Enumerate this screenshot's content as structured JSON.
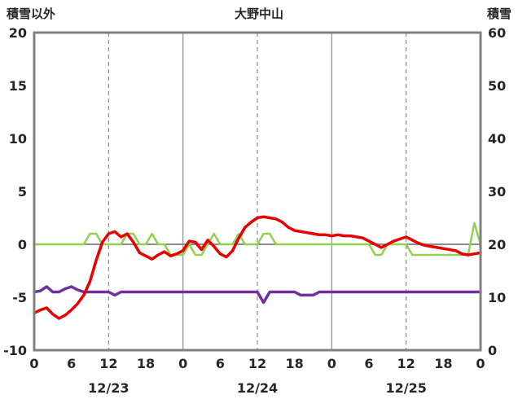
{
  "chart_data": {
    "type": "line",
    "title": "大野中山",
    "left_axis_label": "積雪以外",
    "right_axis_label": "積雪",
    "left_ylim": [
      -10,
      20
    ],
    "right_ylim": [
      0,
      60
    ],
    "left_yticks": [
      20,
      15,
      10,
      5,
      0,
      -5,
      -10
    ],
    "right_yticks": [
      60,
      50,
      40,
      30,
      20,
      10,
      0
    ],
    "x_hours_range": [
      0,
      72
    ],
    "x_tick_step": 6,
    "x_tick_labels": [
      "0",
      "6",
      "12",
      "18",
      "0",
      "6",
      "12",
      "18",
      "0",
      "6",
      "12",
      "18",
      "0"
    ],
    "date_labels": [
      {
        "hour": 12,
        "label": "12/23"
      },
      {
        "hour": 36,
        "label": "12/24"
      },
      {
        "hour": 60,
        "label": "12/25"
      }
    ],
    "gridlines": {
      "solid_hours": [
        24,
        48
      ],
      "dashed_hours": [
        12,
        36,
        60
      ]
    },
    "colors": {
      "frame": "#808080",
      "gridline": "#8c8c8c",
      "zero_line": "#8c8c8c",
      "text": "#262626",
      "red": "#e60000",
      "green": "#92d050",
      "purple": "#7030a0"
    },
    "series": [
      {
        "name": "green-line",
        "color": "#92d050",
        "width": 2.5,
        "axis": "left",
        "values": [
          0,
          0,
          0,
          0,
          0,
          0,
          0,
          0,
          0,
          1,
          1,
          0,
          0,
          0,
          0,
          1,
          1,
          0,
          0,
          1,
          0,
          0,
          -1,
          -1,
          -1,
          0,
          -1,
          -1,
          0,
          1,
          0,
          0,
          0,
          1,
          0,
          0,
          0,
          1,
          1,
          0,
          0,
          0,
          0,
          0,
          0,
          0,
          0,
          0,
          0,
          0,
          0,
          0,
          0,
          0,
          0,
          -1,
          -1,
          0,
          0,
          0,
          0,
          -1,
          -1,
          -1,
          -1,
          -1,
          -1,
          -1,
          -1,
          -1,
          -1,
          2,
          0
        ]
      },
      {
        "name": "purple-line",
        "color": "#7030a0",
        "width": 3.5,
        "axis": "left",
        "values": [
          -4.5,
          -4.4,
          -4.0,
          -4.5,
          -4.5,
          -4.2,
          -4.0,
          -4.3,
          -4.5,
          -4.5,
          -4.5,
          -4.5,
          -4.5,
          -4.8,
          -4.5,
          -4.5,
          -4.5,
          -4.5,
          -4.5,
          -4.5,
          -4.5,
          -4.5,
          -4.5,
          -4.5,
          -4.5,
          -4.5,
          -4.5,
          -4.5,
          -4.5,
          -4.5,
          -4.5,
          -4.5,
          -4.5,
          -4.5,
          -4.5,
          -4.5,
          -4.5,
          -5.5,
          -4.5,
          -4.5,
          -4.5,
          -4.5,
          -4.5,
          -4.8,
          -4.8,
          -4.8,
          -4.5,
          -4.5,
          -4.5,
          -4.5,
          -4.5,
          -4.5,
          -4.5,
          -4.5,
          -4.5,
          -4.5,
          -4.5,
          -4.5,
          -4.5,
          -4.5,
          -4.5,
          -4.5,
          -4.5,
          -4.5,
          -4.5,
          -4.5,
          -4.5,
          -4.5,
          -4.5,
          -4.5,
          -4.5,
          -4.5,
          -4.5
        ]
      },
      {
        "name": "red-line",
        "color": "#e60000",
        "width": 3.5,
        "axis": "left",
        "values": [
          -6.5,
          -6.2,
          -6.0,
          -6.6,
          -7.0,
          -6.7,
          -6.2,
          -5.6,
          -4.8,
          -3.5,
          -1.5,
          0.2,
          1.0,
          1.2,
          0.7,
          1.0,
          0.2,
          -0.8,
          -1.1,
          -1.4,
          -1.0,
          -0.7,
          -1.1,
          -0.9,
          -0.6,
          0.3,
          0.2,
          -0.5,
          0.4,
          -0.2,
          -0.9,
          -1.2,
          -0.6,
          0.6,
          1.6,
          2.1,
          2.5,
          2.6,
          2.5,
          2.4,
          2.1,
          1.6,
          1.3,
          1.2,
          1.1,
          1.0,
          0.9,
          0.9,
          0.8,
          0.9,
          0.8,
          0.8,
          0.7,
          0.6,
          0.3,
          0.0,
          -0.3,
          0.0,
          0.3,
          0.5,
          0.7,
          0.4,
          0.1,
          -0.1,
          -0.2,
          -0.3,
          -0.4,
          -0.5,
          -0.6,
          -0.9,
          -1.0,
          -0.9,
          -0.8
        ]
      }
    ]
  }
}
